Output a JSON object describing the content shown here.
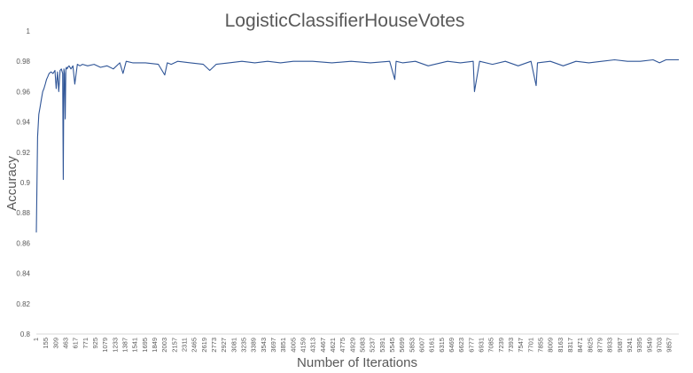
{
  "chart_data": {
    "type": "line",
    "title": "LogisticClassifierHouseVotes",
    "xlabel": "Number of Iterations",
    "ylabel": "Accuracy",
    "ylim": [
      0.8,
      1.0
    ],
    "yticks": [
      "0.8",
      "0.82",
      "0.84",
      "0.86",
      "0.88",
      "0.9",
      "0.92",
      "0.94",
      "0.96",
      "0.98",
      "1"
    ],
    "xlim": [
      1,
      10000
    ],
    "xtick_step": 77,
    "xtick_labels": [
      "1",
      "155",
      "309",
      "463",
      "617",
      "771",
      "925",
      "1079",
      "1233",
      "1387",
      "1541",
      "1695",
      "1849",
      "2003",
      "2157",
      "2311",
      "2465",
      "2619",
      "2773",
      "2927",
      "3081",
      "3235",
      "3389",
      "3543",
      "3697",
      "3851",
      "4005",
      "4159",
      "4313",
      "4467",
      "4621",
      "4775",
      "4929",
      "5083",
      "5237",
      "5391",
      "5545",
      "5699",
      "5853",
      "6007",
      "6161",
      "6315",
      "6469",
      "6623",
      "6777",
      "6931",
      "7085",
      "7239",
      "7393",
      "7547",
      "7701",
      "7855",
      "8009",
      "8163",
      "8317",
      "8471",
      "8625",
      "8779",
      "8933",
      "9087",
      "9241",
      "9395",
      "9549",
      "9703",
      "9857"
    ],
    "grid": false,
    "legend": "none",
    "color": "#2f5597",
    "series": [
      {
        "x": [
          1,
          20,
          40,
          60,
          80,
          100,
          120,
          140,
          160,
          180,
          200,
          230,
          260,
          290,
          310,
          330,
          350,
          370,
          390,
          410,
          420,
          430,
          440,
          450,
          460,
          470,
          480,
          490,
          510,
          540,
          570,
          600,
          640,
          680,
          720,
          800,
          900,
          1000,
          1100,
          1200,
          1300,
          1350,
          1400,
          1500,
          1700,
          1900,
          2000,
          2040,
          2100,
          2200,
          2400,
          2600,
          2700,
          2800,
          3000,
          3200,
          3400,
          3600,
          3800,
          4000,
          4300,
          4600,
          4900,
          5200,
          5500,
          5580,
          5600,
          5700,
          5900,
          6100,
          6400,
          6600,
          6800,
          6820,
          6900,
          7100,
          7300,
          7500,
          7700,
          7780,
          7800,
          8000,
          8200,
          8400,
          8600,
          8800,
          9000,
          9200,
          9400,
          9600,
          9700,
          9800,
          10000
        ],
        "y": [
          0.867,
          0.93,
          0.945,
          0.95,
          0.955,
          0.96,
          0.962,
          0.965,
          0.968,
          0.97,
          0.972,
          0.973,
          0.972,
          0.974,
          0.962,
          0.973,
          0.96,
          0.974,
          0.975,
          0.972,
          0.902,
          0.975,
          0.972,
          0.942,
          0.975,
          0.976,
          0.975,
          0.976,
          0.977,
          0.975,
          0.977,
          0.965,
          0.978,
          0.977,
          0.978,
          0.977,
          0.978,
          0.976,
          0.977,
          0.975,
          0.979,
          0.972,
          0.98,
          0.979,
          0.979,
          0.978,
          0.971,
          0.979,
          0.978,
          0.98,
          0.979,
          0.978,
          0.974,
          0.978,
          0.979,
          0.98,
          0.979,
          0.98,
          0.979,
          0.98,
          0.98,
          0.979,
          0.98,
          0.979,
          0.98,
          0.968,
          0.98,
          0.979,
          0.98,
          0.977,
          0.98,
          0.979,
          0.98,
          0.96,
          0.98,
          0.978,
          0.98,
          0.977,
          0.98,
          0.964,
          0.979,
          0.98,
          0.977,
          0.98,
          0.979,
          0.98,
          0.981,
          0.98,
          0.98,
          0.981,
          0.979,
          0.981,
          0.981
        ]
      }
    ]
  }
}
